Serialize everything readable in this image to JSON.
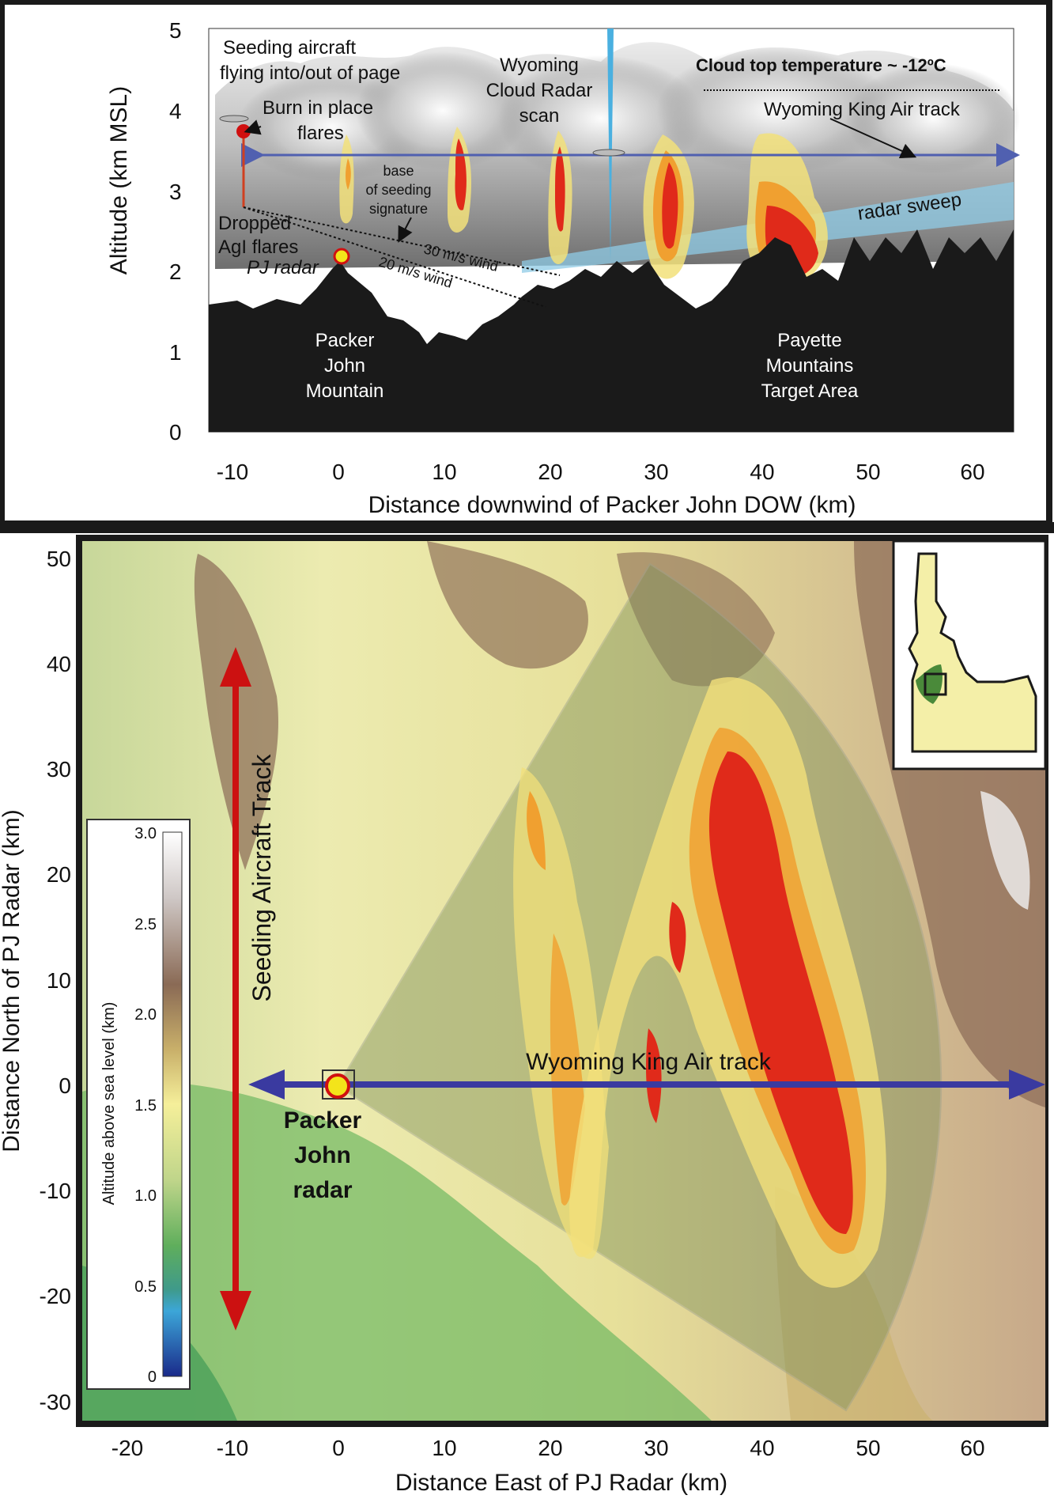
{
  "top_panel": {
    "y_axis": {
      "label": "Altitude (km MSL)",
      "ticks": [
        "5",
        "4",
        "3",
        "2",
        "1",
        "0"
      ]
    },
    "x_axis": {
      "label": "Distance downwind of Packer John DOW (km)",
      "ticks": [
        "-10",
        "0",
        "10",
        "20",
        "30",
        "40",
        "50",
        "60"
      ]
    },
    "annotations": {
      "seeding_aircraft_line1": "Seeding aircraft",
      "seeding_aircraft_line2": "flying into/out of page",
      "burn_in_place_line1": "Burn in place",
      "burn_in_place_line2": "flares",
      "wcr_line1": "Wyoming",
      "wcr_line2": "Cloud Radar",
      "wcr_line3": "scan",
      "cloud_top": "Cloud top temperature ~ -12ºC",
      "king_air_track": "Wyoming King Air track",
      "base_line1": "base",
      "base_line2": "of seeding",
      "base_line3": "signature",
      "dropped_line1": "Dropped",
      "dropped_line2": "AgI flares",
      "pj_radar": "PJ radar",
      "wind30": "30 m/s wind",
      "wind20": "20 m/s wind",
      "radar_sweep": "radar sweep",
      "packer_line1": "Packer",
      "packer_line2": "John",
      "packer_line3": "Mountain",
      "payette_line1": "Payette",
      "payette_line2": "Mountains",
      "payette_line3": "Target Area"
    }
  },
  "bottom_panel": {
    "y_axis": {
      "label": "Distance North of PJ Radar (km)",
      "ticks": [
        "50",
        "40",
        "30",
        "20",
        "10",
        "0",
        "-10",
        "-20",
        "-30"
      ]
    },
    "x_axis": {
      "label": "Distance East of PJ Radar (km)",
      "ticks": [
        "-20",
        "-10",
        "0",
        "10",
        "20",
        "30",
        "40",
        "50",
        "60"
      ]
    },
    "colorbar": {
      "label": "Altitude above sea level (km)",
      "ticks": [
        "3.0",
        "2.5",
        "2.0",
        "1.5",
        "1.0",
        "0.5",
        "0"
      ]
    },
    "annotations": {
      "seeding_track": "Seeding Aircraft Track",
      "king_air_track": "Wyoming King Air track",
      "pj_line1": "Packer",
      "pj_line2": "John",
      "pj_line3": "radar"
    }
  },
  "colors": {
    "terrain": "#1a1a1a",
    "plume_yellow": "#f2e07a",
    "plume_orange": "#f0a030",
    "plume_red": "#e02a1a",
    "king_air_arrow": "#3a3aa0",
    "seeding_arrow": "#cc1111",
    "radar_sweep": "#8fcbe6",
    "frame": "#1a1a1a"
  }
}
